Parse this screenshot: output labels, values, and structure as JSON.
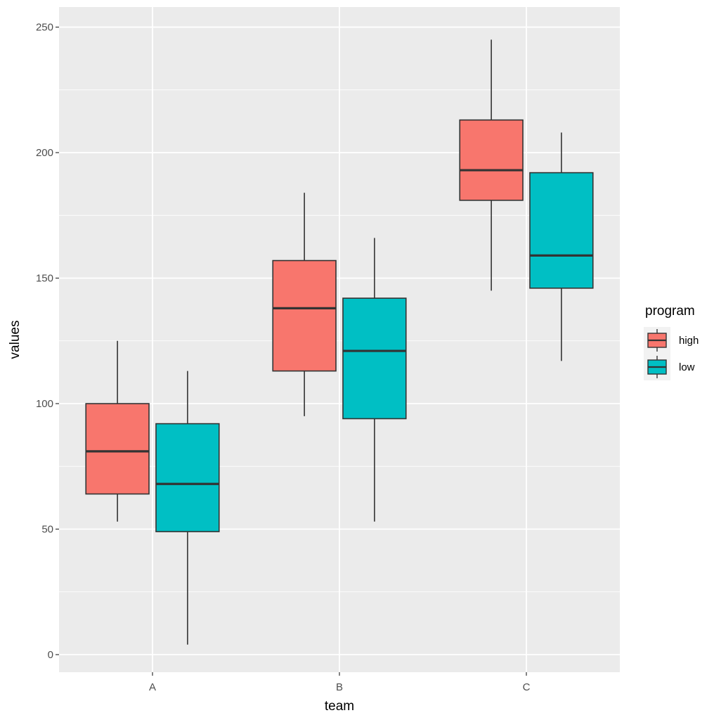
{
  "chart_data": {
    "type": "boxplot",
    "title": "",
    "xlabel": "team",
    "ylabel": "values",
    "categories": [
      "A",
      "B",
      "C"
    ],
    "ylim": [
      -7,
      258
    ],
    "y_ticks": [
      0,
      50,
      100,
      150,
      200,
      250
    ],
    "grid": true,
    "legend": {
      "title": "program",
      "position": "right"
    },
    "series": [
      {
        "name": "high",
        "color": "#F8766D",
        "boxes": [
          {
            "min": 53,
            "q1": 64,
            "median": 81,
            "q3": 100,
            "max": 125
          },
          {
            "min": 95,
            "q1": 113,
            "median": 138,
            "q3": 157,
            "max": 184
          },
          {
            "min": 145,
            "q1": 181,
            "median": 193,
            "q3": 213,
            "max": 245
          }
        ]
      },
      {
        "name": "low",
        "color": "#00BFC4",
        "boxes": [
          {
            "min": 4,
            "q1": 49,
            "median": 68,
            "q3": 92,
            "max": 113
          },
          {
            "min": 53,
            "q1": 94,
            "median": 121,
            "q3": 142,
            "max": 166
          },
          {
            "min": 117,
            "q1": 146,
            "median": 159,
            "q3": 192,
            "max": 208
          }
        ]
      }
    ]
  }
}
